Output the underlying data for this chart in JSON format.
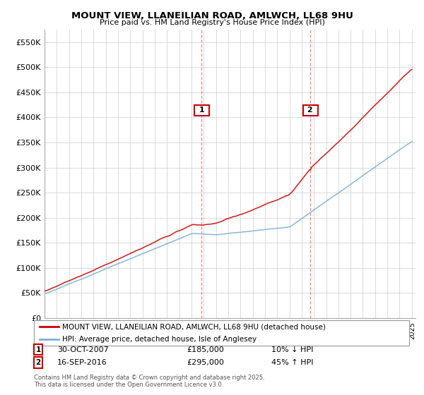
{
  "title": "MOUNT VIEW, LLANEILIAN ROAD, AMLWCH, LL68 9HU",
  "subtitle": "Price paid vs. HM Land Registry's House Price Index (HPI)",
  "ylim": [
    0,
    575000
  ],
  "yticks": [
    0,
    50000,
    100000,
    150000,
    200000,
    250000,
    300000,
    350000,
    400000,
    450000,
    500000,
    550000
  ],
  "ytick_labels": [
    "£0",
    "£50K",
    "£100K",
    "£150K",
    "£200K",
    "£250K",
    "£300K",
    "£350K",
    "£400K",
    "£450K",
    "£500K",
    "£550K"
  ],
  "year_start": 1995,
  "year_end": 2025,
  "sale1_year": 2007.83,
  "sale1_price": 185000,
  "sale2_year": 2016.71,
  "sale2_price": 295000,
  "line_color_property": "#cc0000",
  "line_color_hpi": "#7aafd4",
  "legend_label_property": "MOUNT VIEW, LLANEILIAN ROAD, AMLWCH, LL68 9HU (detached house)",
  "legend_label_hpi": "HPI: Average price, detached house, Isle of Anglesey",
  "note1_label": "1",
  "note1_date": "30-OCT-2007",
  "note1_price": "£185,000",
  "note1_hpi": "10% ↓ HPI",
  "note2_label": "2",
  "note2_date": "16-SEP-2016",
  "note2_price": "£295,000",
  "note2_hpi": "45% ↑ HPI",
  "footer": "Contains HM Land Registry data © Crown copyright and database right 2025.\nThis data is licensed under the Open Government Licence v3.0.",
  "background_color": "#ffffff",
  "grid_color": "#cccccc"
}
